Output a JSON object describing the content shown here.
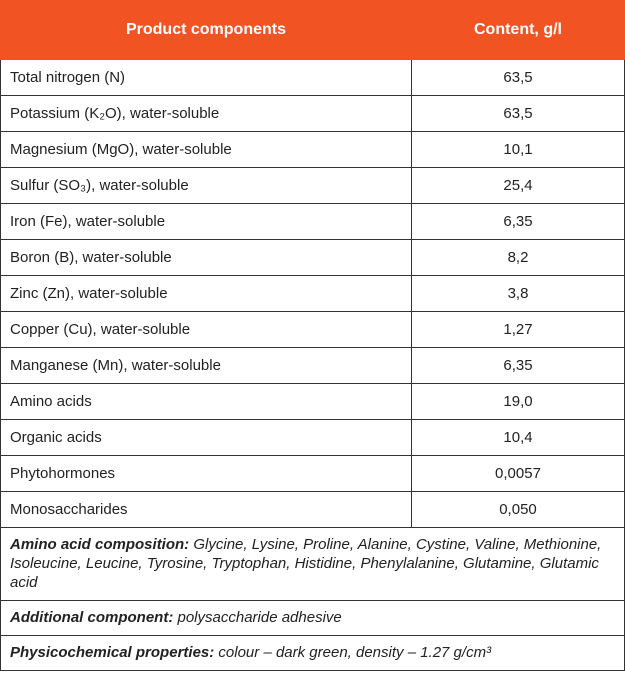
{
  "header": {
    "component": "Product components",
    "content": "Content, g/l"
  },
  "rows": [
    {
      "name": "Total nitrogen (N)",
      "value": "63,5"
    },
    {
      "name": "Potassium (K₂O), water-soluble",
      "value": "63,5"
    },
    {
      "name": "Magnesium (MgO), water-soluble",
      "value": "10,1"
    },
    {
      "name": "Sulfur  (SO₃), water-soluble",
      "value": "25,4"
    },
    {
      "name": "Iron (Fe), water-soluble",
      "value": "6,35"
    },
    {
      "name": "Boron (B), water-soluble",
      "value": "8,2"
    },
    {
      "name": "Zinc (Zn), water-soluble",
      "value": "3,8"
    },
    {
      "name": "Copper (Cu), water-soluble",
      "value": "1,27"
    },
    {
      "name": "Manganese (Mn), water-soluble",
      "value": "6,35"
    },
    {
      "name": "Amino acids",
      "value": "19,0"
    },
    {
      "name": "Organic acids",
      "value": "10,4"
    },
    {
      "name": "Phytohormones",
      "value": "0,0057"
    },
    {
      "name": "Monosaccharides",
      "value": "0,050"
    }
  ],
  "notes": [
    {
      "label": "Amino acid composition:",
      "text": " Glycine, Lysine, Proline, Alanine, Cystine, Valine, Methionine, Isoleucine, Leucine, Tyrosine, Tryptophan, Histidine, Phenylalanine, Glutamine, Glutamic acid"
    },
    {
      "label": "Additional component:",
      "text": " polysaccharide adhesive"
    },
    {
      "label": "Physicochemical properties:",
      "text": " colour – dark green, density – 1.27 g/cm³"
    }
  ],
  "colors": {
    "header_bg": "#f25322",
    "header_text": "#ffffff"
  }
}
